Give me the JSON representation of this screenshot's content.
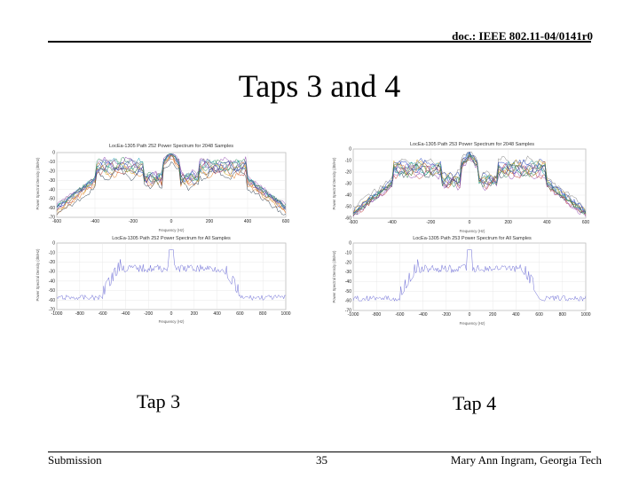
{
  "header": {
    "doc_id": "doc.: IEEE 802.11-04/0141r0"
  },
  "slide": {
    "title": "Taps 3 and 4"
  },
  "figures": {
    "tap3": {
      "caption": "Tap 3",
      "top_plot": {
        "title": "LocEa-1305 Path 252 Power Spectrum for 2048 Samples",
        "y_ticks": [
          "0",
          "-10",
          "-20",
          "-30",
          "-40",
          "-50",
          "-60",
          "-70"
        ],
        "x_ticks": [
          "-600",
          "-400",
          "-200",
          "0",
          "200",
          "400",
          "600"
        ],
        "x_label": "Frequency (Hz)",
        "y_label": "Power Spectral Density (dB/Hz)"
      },
      "bottom_plot": {
        "title": "LocEa-1305 Path 252 Power Spectrum for All Samples",
        "y_ticks": [
          "0",
          "-10",
          "-20",
          "-30",
          "-40",
          "-50",
          "-60",
          "-70"
        ],
        "x_ticks": [
          "-1000",
          "-800",
          "-600",
          "-400",
          "-200",
          "0",
          "200",
          "400",
          "600",
          "800",
          "1000"
        ],
        "x_label": "Frequency (Hz)",
        "y_label": "Power Spectral Density (dB/Hz)"
      }
    },
    "tap4": {
      "caption": "Tap 4",
      "top_plot": {
        "title": "LocEa-1305 Path 253 Power Spectrum for 2048 Samples",
        "y_ticks": [
          "0",
          "-10",
          "-20",
          "-30",
          "-40",
          "-50",
          "-60"
        ],
        "x_ticks": [
          "-600",
          "-400",
          "-200",
          "0",
          "200",
          "400",
          "600"
        ],
        "x_label": "Frequency (Hz)",
        "y_label": "Power Spectral Density (dB/Hz)"
      },
      "bottom_plot": {
        "title": "LocEa-1305 Path 253 Power Spectrum for All Samples",
        "y_ticks": [
          "0",
          "-10",
          "-20",
          "-30",
          "-40",
          "-50",
          "-60",
          "-70"
        ],
        "x_ticks": [
          "-1000",
          "-800",
          "-600",
          "-400",
          "-200",
          "0",
          "200",
          "400",
          "600",
          "800",
          "1000"
        ],
        "x_label": "Frequency (Hz)",
        "y_label": "Power Spectral Density (dB/Hz)"
      }
    }
  },
  "footer": {
    "left": "Submission",
    "page_number": "35",
    "author": "Mary Ann Ingram, Georgia Tech"
  },
  "colors": {
    "trace_palette": [
      "#1f3fbf",
      "#2e8b57",
      "#c0392b",
      "#8e44ad",
      "#d4a017",
      "#17a2b8",
      "#7f7f7f",
      "#e67e22",
      "#2c3e50",
      "#9b59b6"
    ],
    "all_samples_trace": "#6b6bd6"
  }
}
